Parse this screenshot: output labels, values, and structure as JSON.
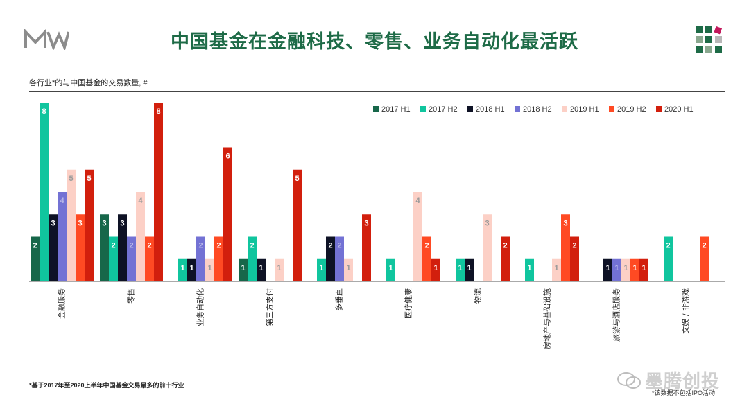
{
  "header": {
    "logo_text": "MW",
    "title": "中国基金在金融科技、零售、业务自动化最活跃"
  },
  "subtitle": "各行业*的与中国基金的交易数量, #",
  "footnote": "*基于2017年至2020上半年中国基金交易最多的前十行业",
  "source_note": "*该数据不包括IPO活动",
  "watermark": "墨腾创投",
  "colors": {
    "title": "#1e6b47",
    "series": [
      "#17674a",
      "#10c59e",
      "#0e1225",
      "#7372d4",
      "#fcd0c6",
      "#ff4a23",
      "#d21f0d"
    ],
    "grid_icon": [
      "#1e6b47",
      "#8aa88f",
      "#b8b8b8",
      "#c2185b"
    ]
  },
  "chart_data": {
    "type": "bar",
    "categories": [
      "金融服务",
      "零售",
      "业务自动化",
      "第三方支付",
      "多垂直",
      "医疗健康",
      "物流",
      "房地产与基础设施",
      "旅游与酒店服务",
      "文娱 / 非游戏"
    ],
    "series": [
      {
        "name": "2017 H1",
        "values": [
          2,
          3,
          0,
          1,
          0,
          0,
          0,
          0,
          0,
          0
        ]
      },
      {
        "name": "2017 H2",
        "values": [
          8,
          2,
          1,
          2,
          1,
          1,
          1,
          1,
          0,
          2
        ]
      },
      {
        "name": "2018 H1",
        "values": [
          3,
          3,
          1,
          1,
          2,
          0,
          1,
          0,
          1,
          0
        ]
      },
      {
        "name": "2018 H2",
        "values": [
          4,
          2,
          2,
          0,
          2,
          0,
          0,
          0,
          1,
          0
        ]
      },
      {
        "name": "2019 H1",
        "values": [
          5,
          4,
          1,
          1,
          1,
          4,
          3,
          1,
          1,
          0
        ]
      },
      {
        "name": "2019 H2",
        "values": [
          3,
          2,
          2,
          0,
          0,
          2,
          0,
          3,
          1,
          2
        ]
      },
      {
        "name": "2020 H1",
        "values": [
          5,
          8,
          6,
          5,
          3,
          1,
          2,
          2,
          1,
          0
        ]
      }
    ],
    "ylim": [
      0,
      8
    ],
    "legend_position": "top-right",
    "grid": false
  }
}
